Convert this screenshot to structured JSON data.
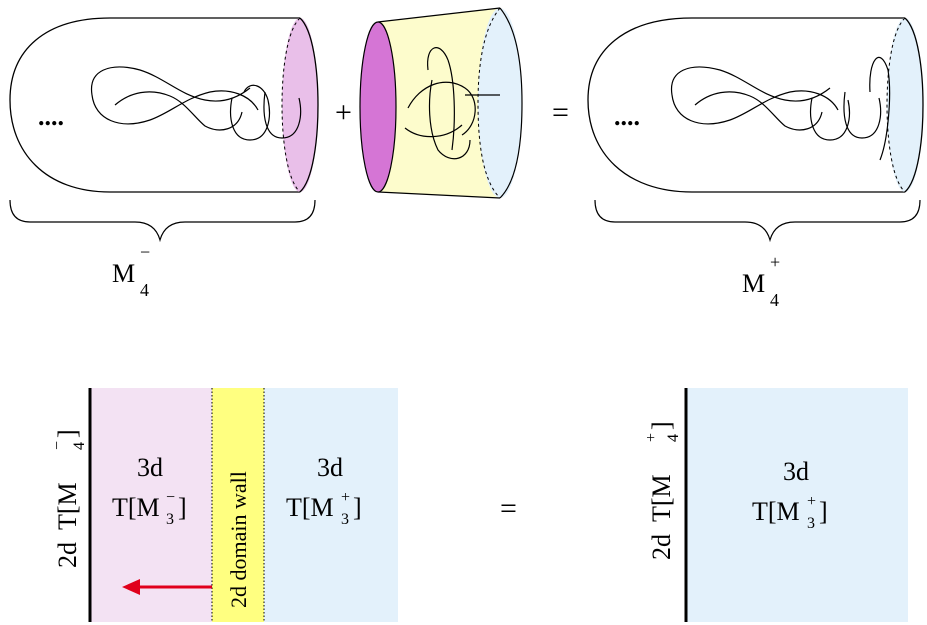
{
  "top": {
    "dots": "....",
    "plus": "+",
    "equals": "=",
    "left_label": {
      "base": "M",
      "sub": "4",
      "sup": "−"
    },
    "right_label": {
      "base": "M",
      "sub": "4",
      "sup": "+"
    }
  },
  "bottom": {
    "left_boundary": {
      "prefix": "2d",
      "text": "T[M",
      "sub": "4",
      "sup": "−",
      "close": "]"
    },
    "left_region": {
      "line1": "3d",
      "text": "T[M",
      "sub": "3",
      "sup": "−",
      "close": "]"
    },
    "domain_wall": "2d domain wall",
    "mid_region": {
      "line1": "3d",
      "text": "T[M",
      "sub": "3",
      "sup": "+",
      "close": "]"
    },
    "equals": "=",
    "right_boundary": {
      "prefix": "2d",
      "text": "T[M",
      "sub": "4",
      "sup": "+",
      "close": "]"
    },
    "right_region": {
      "line1": "3d",
      "text": "T[M",
      "sub": "3",
      "sup": "+",
      "close": "]"
    }
  },
  "colors": {
    "pink_light": "#f3e2f3",
    "pink_disk": "#e9bfe9",
    "magenta_disk": "#d575d5",
    "yellow_light": "#fdfccc",
    "yellow_wall": "#ffff80",
    "blue_light": "#e3f1fb",
    "arrow": "#e0001b"
  }
}
